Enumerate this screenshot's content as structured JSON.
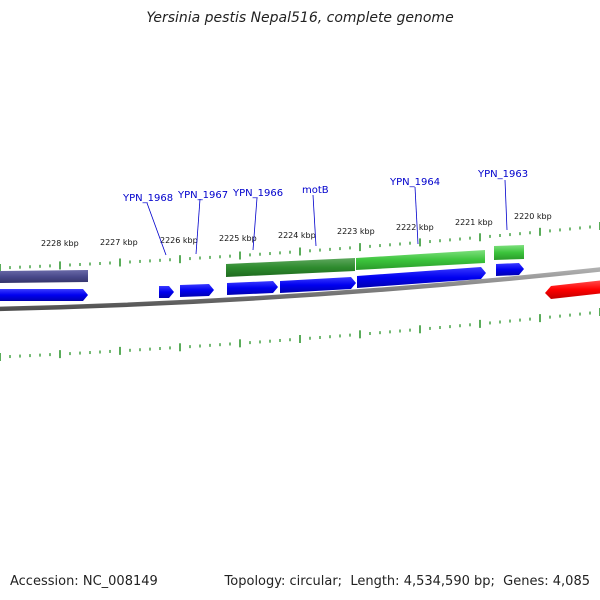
{
  "title": "Yersinia pestis Nepal516, complete genome",
  "footer": {
    "accession_label": "Accession:",
    "accession": "NC_008149",
    "topology_label": "Topology:",
    "topology": "circular",
    "length_label": "Length:",
    "length": "4,534,590 bp",
    "genes_label": "Genes:",
    "genes": "4,085"
  },
  "scale": {
    "unit": "kbp",
    "ticks": [
      "2220 kbp",
      "2221 kbp",
      "2222 kbp",
      "2223 kbp",
      "2224 kbp",
      "2225 kbp",
      "2226 kbp",
      "2227 kbp",
      "2228 kbp"
    ]
  },
  "gene_labels": [
    "YPN_1963",
    "YPN_1964",
    "motB",
    "YPN_1966",
    "YPN_1967",
    "YPN_1968"
  ],
  "colors": {
    "label_blue": "#0000cc",
    "gene_blue": "#0000ff",
    "cds_green": "#2e8b2e",
    "cds_light_green": "#44cc44",
    "other_red": "#ff0000",
    "rna_slate": "#4a4a8c",
    "tick_green": "#008000",
    "backbone_gray": "#888888"
  }
}
